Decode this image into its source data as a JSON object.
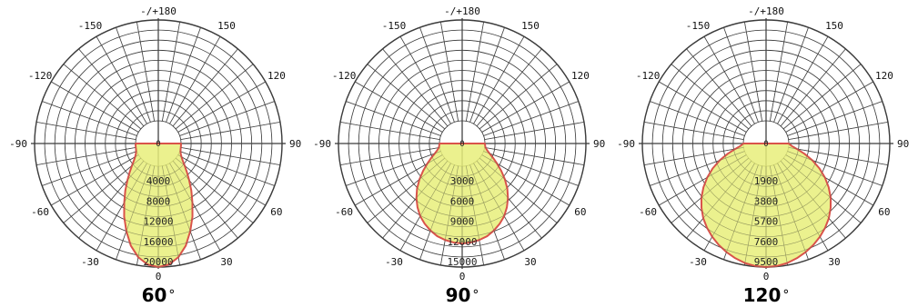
{
  "chart_data": [
    {
      "type": "polar",
      "title": "60",
      "title_unit": "°",
      "angle_labels": [
        "0",
        "30",
        "60",
        "90",
        "120",
        "150",
        "-/+180",
        "-150",
        "-120",
        "-90",
        "-60",
        "-30"
      ],
      "radial_ticks": [
        "4000",
        "8000",
        "12000",
        "16000",
        "20000"
      ],
      "rmax": 20000,
      "series": [
        {
          "angles": [
            0,
            5,
            10,
            15,
            20,
            25,
            30,
            35,
            40,
            45,
            50,
            55,
            60,
            65,
            70,
            75,
            80,
            85,
            90
          ],
          "values": [
            20000,
            19600,
            18400,
            16500,
            14000,
            11500,
            9000,
            6900,
            5000,
            3500,
            2300,
            1400,
            800,
            400,
            180,
            60,
            20,
            5,
            0
          ],
          "fill": "#e8ee7a",
          "stroke": "#d9534a"
        }
      ]
    },
    {
      "type": "polar",
      "title": "90",
      "title_unit": "°",
      "angle_labels": [
        "0",
        "30",
        "60",
        "90",
        "120",
        "150",
        "-/+180",
        "-150",
        "-120",
        "-90",
        "-60",
        "-30"
      ],
      "radial_ticks": [
        "3000",
        "6000",
        "9000",
        "12000",
        "15000"
      ],
      "rmax": 15000,
      "series": [
        {
          "angles": [
            0,
            5,
            10,
            15,
            20,
            25,
            30,
            35,
            40,
            45,
            50,
            55,
            60,
            65,
            70,
            75,
            80,
            85,
            90
          ],
          "values": [
            11500,
            11400,
            11200,
            10900,
            10400,
            9800,
            9100,
            8200,
            7200,
            6100,
            4900,
            3700,
            2600,
            1700,
            950,
            450,
            150,
            40,
            0
          ],
          "fill": "#e8ee7a",
          "stroke": "#d9534a"
        }
      ]
    },
    {
      "type": "polar",
      "title": "120",
      "title_unit": "°",
      "angle_labels": [
        "0",
        "30",
        "60",
        "90",
        "120",
        "150",
        "-/+180",
        "-150",
        "-120",
        "-90",
        "-60",
        "-30"
      ],
      "radial_ticks": [
        "1900",
        "3800",
        "5700",
        "7600",
        "9500"
      ],
      "rmax": 9500,
      "series": [
        {
          "angles": [
            0,
            5,
            10,
            15,
            20,
            25,
            30,
            35,
            40,
            45,
            50,
            55,
            60,
            65,
            70,
            75,
            80,
            85,
            90
          ],
          "values": [
            9500,
            9450,
            9300,
            9050,
            8750,
            8400,
            8000,
            7550,
            7050,
            6450,
            5800,
            5050,
            4250,
            3400,
            2500,
            1600,
            800,
            250,
            0
          ],
          "fill": "#e8ee7a",
          "stroke": "#d9534a"
        }
      ]
    }
  ]
}
